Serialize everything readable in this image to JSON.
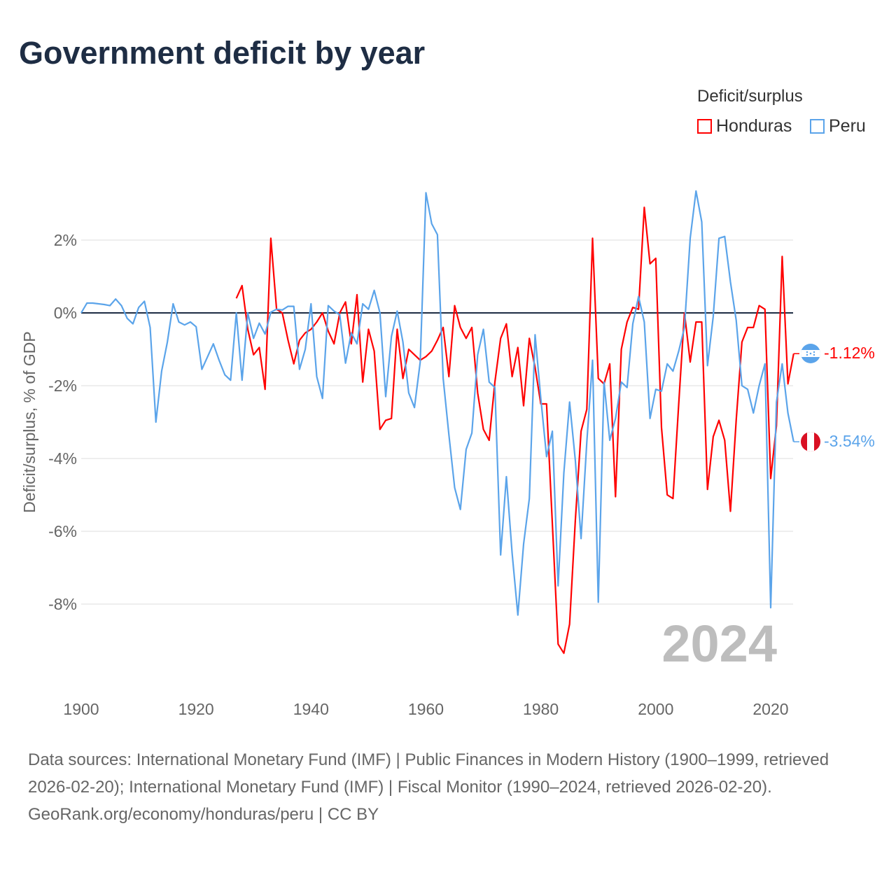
{
  "title": "Government deficit by year",
  "legend": {
    "title": "Deficit/surplus",
    "items": [
      {
        "name": "Honduras",
        "color": "#ff0000"
      },
      {
        "name": "Peru",
        "color": "#5ba4ea"
      }
    ]
  },
  "year_label": "2024",
  "footer": {
    "sources": "Data sources: International Monetary Fund (IMF) | Public Finances in Modern History (1900–1999, retrieved 2026-02-20); International Monetary Fund (IMF) | Fiscal Monitor (1990–2024, retrieved 2026-02-20).",
    "credit": "GeoRank.org/economy/honduras/peru | CC BY"
  },
  "chart_data": {
    "type": "line",
    "title": "Government deficit by year",
    "xlabel": "",
    "ylabel": "Deficit/surplus, % of GDP",
    "xlim": [
      1900,
      2024
    ],
    "ylim": [
      -10,
      3.5
    ],
    "x_ticks": [
      1900,
      1920,
      1940,
      1960,
      1980,
      2000,
      2020
    ],
    "x_tick_labels": [
      "1900",
      "1920",
      "1940",
      "1960",
      "1980",
      "2000",
      "2020"
    ],
    "y_ticks": [
      2,
      0,
      -2,
      -4,
      -6,
      -8
    ],
    "y_tick_labels": [
      "2%",
      "0%",
      "-2%",
      "-4%",
      "-6%",
      "-8%"
    ],
    "grid": true,
    "legend_position": "top-right",
    "end_labels": {
      "Honduras": "-1.12%",
      "Peru": "-3.54%"
    },
    "series": [
      {
        "name": "Honduras",
        "color": "#ff0000",
        "start_year": 1927,
        "values": [
          0.4,
          0.75,
          -0.45,
          -1.15,
          -0.95,
          -2.1,
          2.05,
          0.1,
          0.0,
          -0.75,
          -1.4,
          -0.75,
          -0.55,
          -0.45,
          -0.25,
          0.0,
          -0.5,
          -0.85,
          0.0,
          0.3,
          -0.85,
          0.5,
          -1.9,
          -0.45,
          -1.05,
          -3.2,
          -2.95,
          -2.9,
          -0.45,
          -1.8,
          -1.0,
          -1.15,
          -1.3,
          -1.2,
          -1.05,
          -0.75,
          -0.4,
          -1.75,
          0.2,
          -0.4,
          -0.7,
          -0.4,
          -2.2,
          -3.2,
          -3.5,
          -1.9,
          -0.7,
          -0.3,
          -1.75,
          -0.95,
          -2.55,
          -0.7,
          -1.5,
          -2.5,
          -2.5,
          -5.8,
          -9.1,
          -9.35,
          -8.55,
          -5.7,
          -3.25,
          -2.65,
          2.05,
          -1.8,
          -1.95,
          -1.4,
          -5.05,
          -1.0,
          -0.25,
          0.15,
          0.1,
          2.9,
          1.35,
          1.5,
          -3.15,
          -5.0,
          -5.1,
          -2.5,
          0.0,
          -1.35,
          -0.25,
          -0.25,
          -4.85,
          -3.4,
          -2.95,
          -3.5,
          -5.45,
          -2.95,
          -0.8,
          -0.4,
          -0.4,
          0.2,
          0.1,
          -4.55,
          -3.1,
          1.55,
          -1.95,
          -1.12
        ]
      },
      {
        "name": "Peru",
        "color": "#5ba4ea",
        "start_year": 1900,
        "values": [
          0,
          0.27,
          0.27,
          0.25,
          0.23,
          0.2,
          0.38,
          0.2,
          -0.15,
          -0.3,
          0.15,
          0.32,
          -0.4,
          -3.0,
          -1.6,
          -0.8,
          0.25,
          -0.25,
          -0.33,
          -0.25,
          -0.38,
          -1.55,
          -1.2,
          -0.85,
          -1.3,
          -1.7,
          -1.85,
          0,
          -1.85,
          0,
          -0.7,
          -0.28,
          -0.58,
          0.02,
          0.1,
          0.08,
          0.18,
          0.18,
          -1.55,
          -1.0,
          0.25,
          -1.75,
          -2.35,
          0.2,
          0.05,
          -0.05,
          -1.38,
          -0.55,
          -0.85,
          0.25,
          0.1,
          0.62,
          0.0,
          -2.3,
          -0.65,
          0.05,
          -0.8,
          -2.2,
          -2.6,
          -1.35,
          3.3,
          2.45,
          2.15,
          -1.8,
          -3.35,
          -4.8,
          -5.4,
          -3.75,
          -3.3,
          -1.15,
          -0.45,
          -1.9,
          -2.05,
          -6.65,
          -4.5,
          -6.6,
          -8.3,
          -6.35,
          -5.1,
          -0.6,
          -2.35,
          -3.95,
          -3.25,
          -7.5,
          -4.4,
          -2.45,
          -4.05,
          -6.2,
          -3.55,
          -1.3,
          -7.95,
          -1.9,
          -3.5,
          -2.9,
          -1.9,
          -2.05,
          -0.3,
          0.45,
          -0.25,
          -2.9,
          -2.1,
          -2.15,
          -1.4,
          -1.6,
          -1.05,
          -0.4,
          2.05,
          3.35,
          2.5,
          -1.45,
          -0.1,
          2.05,
          2.1,
          0.85,
          -0.2,
          -2.0,
          -2.1,
          -2.75,
          -2.0,
          -1.4,
          -8.1,
          -2.45,
          -1.4,
          -2.75,
          -3.54
        ]
      }
    ]
  }
}
